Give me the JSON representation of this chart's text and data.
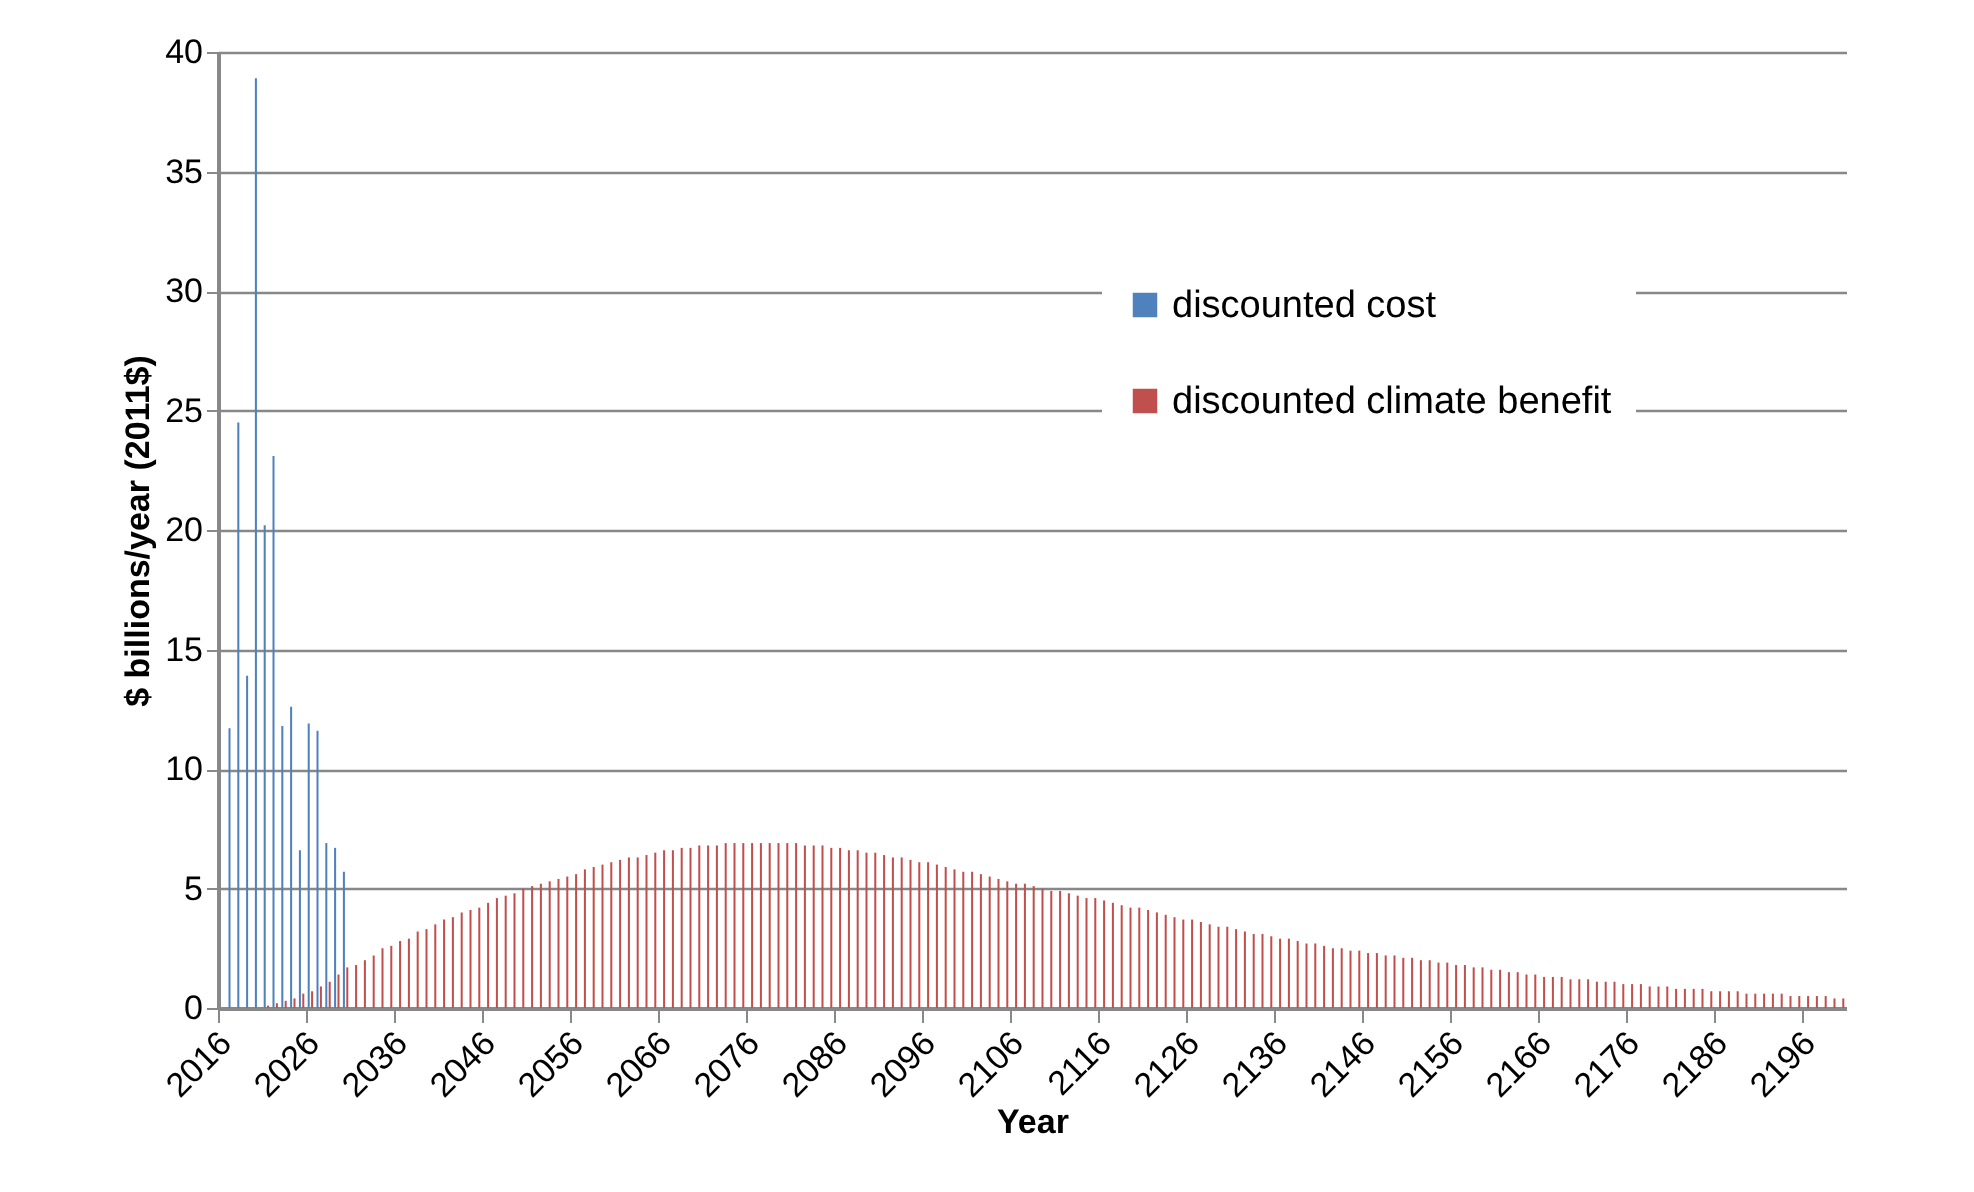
{
  "chart_data": {
    "type": "bar",
    "xlabel": "Year",
    "ylabel": "$ billions/year (2011$)",
    "ylim": [
      0,
      40
    ],
    "yticks": [
      0,
      5,
      10,
      15,
      20,
      25,
      30,
      35,
      40
    ],
    "grid": "y",
    "legend": "top right",
    "categories": [
      "2016",
      null,
      null,
      null,
      null,
      null,
      null,
      null,
      null,
      null,
      "2026",
      null,
      null,
      null,
      null,
      null,
      null,
      null,
      null,
      null,
      "2036",
      null,
      null,
      null,
      null,
      null,
      null,
      null,
      null,
      null,
      "2046",
      null,
      null,
      null,
      null,
      null,
      null,
      null,
      null,
      null,
      "2056",
      null,
      null,
      null,
      null,
      null,
      null,
      null,
      null,
      null,
      "2066",
      null,
      null,
      null,
      null,
      null,
      null,
      null,
      null,
      null,
      "2076",
      null,
      null,
      null,
      null,
      null,
      null,
      null,
      null,
      null,
      "2086",
      null,
      null,
      null,
      null,
      null,
      null,
      null,
      null,
      null,
      "2096",
      null,
      null,
      null,
      null,
      null,
      null,
      null,
      null,
      null,
      "2106",
      null,
      null,
      null,
      null,
      null,
      null,
      null,
      null,
      null,
      "2116",
      null,
      null,
      null,
      null,
      null,
      null,
      null,
      null,
      null,
      "2126",
      null,
      null,
      null,
      null,
      null,
      null,
      null,
      null,
      null,
      "2136",
      null,
      null,
      null,
      null,
      null,
      null,
      null,
      null,
      null,
      "2146",
      null,
      null,
      null,
      null,
      null,
      null,
      null,
      null,
      null,
      "2156",
      null,
      null,
      null,
      null,
      null,
      null,
      null,
      null,
      null,
      "2166",
      null,
      null,
      null,
      null,
      null,
      null,
      null,
      null,
      null,
      "2176",
      null,
      null,
      null,
      null,
      null,
      null,
      null,
      null,
      null,
      "2186",
      null,
      null,
      null,
      null,
      null,
      null,
      null,
      null,
      null,
      "2196",
      null,
      null,
      null,
      null
    ],
    "series": [
      {
        "name": "discounted cost",
        "color": "#4f81bd",
        "values": [
          null,
          11.7,
          24.5,
          13.9,
          38.9,
          20.2,
          23.1,
          11.8,
          12.6,
          6.6,
          11.9,
          11.6,
          6.9,
          6.7,
          5.7,
          null,
          null,
          null,
          null,
          null,
          null,
          null,
          null,
          null,
          null,
          null,
          null,
          null,
          null,
          null,
          null,
          null,
          null,
          null,
          null,
          null,
          null,
          null,
          null,
          null,
          null,
          null,
          null,
          null,
          null,
          null,
          null,
          null,
          null,
          null,
          null,
          null,
          null,
          null,
          null,
          null,
          null,
          null,
          null,
          null,
          null,
          null,
          null,
          null,
          null,
          null,
          null,
          null,
          null,
          null,
          null,
          null,
          null,
          null,
          null,
          null,
          null,
          null,
          null,
          null,
          null,
          null,
          null,
          null,
          null,
          null,
          null,
          null,
          null,
          null,
          null,
          null,
          null,
          null,
          null,
          null,
          null,
          null,
          null,
          null,
          null,
          null,
          null,
          null,
          null,
          null,
          null,
          null,
          null,
          null,
          null,
          null,
          null,
          null,
          null,
          null,
          null,
          null,
          null,
          null,
          null,
          null,
          null,
          null,
          null,
          null,
          null,
          null,
          null,
          null,
          null,
          null,
          null,
          null,
          null,
          null,
          null,
          null,
          null,
          null,
          null,
          null,
          null,
          null,
          null,
          null,
          null,
          null,
          null,
          null,
          null,
          null,
          null,
          null,
          null,
          null,
          null,
          null,
          null,
          null,
          null,
          null,
          null,
          null,
          null,
          null,
          null,
          null,
          null,
          null,
          null,
          null,
          null,
          null,
          null,
          null,
          null,
          null,
          null,
          null,
          null,
          null,
          null,
          null,
          null
        ]
      },
      {
        "name": "discounted climate benefit",
        "color": "#c0504d",
        "values": [
          null,
          null,
          null,
          null,
          null,
          0.1,
          0.2,
          0.3,
          0.4,
          0.6,
          0.7,
          0.9,
          1.1,
          1.4,
          1.7,
          1.8,
          2.0,
          2.2,
          2.5,
          2.6,
          2.8,
          2.9,
          3.2,
          3.3,
          3.5,
          3.7,
          3.8,
          4.0,
          4.1,
          4.2,
          4.4,
          4.6,
          4.7,
          4.8,
          5.0,
          5.1,
          5.2,
          5.3,
          5.4,
          5.5,
          5.6,
          5.8,
          5.9,
          6.0,
          6.1,
          6.2,
          6.3,
          6.3,
          6.4,
          6.5,
          6.6,
          6.6,
          6.7,
          6.7,
          6.8,
          6.8,
          6.8,
          6.9,
          6.9,
          6.9,
          6.9,
          6.9,
          6.9,
          6.9,
          6.9,
          6.9,
          6.8,
          6.8,
          6.8,
          6.7,
          6.7,
          6.6,
          6.6,
          6.5,
          6.5,
          6.4,
          6.3,
          6.3,
          6.2,
          6.1,
          6.1,
          6.0,
          5.9,
          5.8,
          5.7,
          5.7,
          5.6,
          5.5,
          5.4,
          5.3,
          5.2,
          5.2,
          5.1,
          5.0,
          4.9,
          4.9,
          4.8,
          4.7,
          4.6,
          4.6,
          4.5,
          4.4,
          4.3,
          4.2,
          4.2,
          4.1,
          4.0,
          3.9,
          3.8,
          3.7,
          3.7,
          3.6,
          3.5,
          3.4,
          3.4,
          3.3,
          3.2,
          3.1,
          3.1,
          3.0,
          2.9,
          2.9,
          2.8,
          2.7,
          2.7,
          2.6,
          2.5,
          2.5,
          2.4,
          2.4,
          2.3,
          2.3,
          2.2,
          2.2,
          2.1,
          2.1,
          2.0,
          2.0,
          1.9,
          1.9,
          1.8,
          1.8,
          1.7,
          1.7,
          1.6,
          1.6,
          1.5,
          1.5,
          1.4,
          1.4,
          1.3,
          1.3,
          1.3,
          1.2,
          1.2,
          1.2,
          1.1,
          1.1,
          1.1,
          1.0,
          1.0,
          1.0,
          0.9,
          0.9,
          0.9,
          0.8,
          0.8,
          0.8,
          0.8,
          0.7,
          0.7,
          0.7,
          0.7,
          0.6,
          0.6,
          0.6,
          0.6,
          0.6,
          0.5,
          0.5,
          0.5,
          0.5,
          0.5,
          0.4,
          0.4
        ]
      }
    ]
  }
}
